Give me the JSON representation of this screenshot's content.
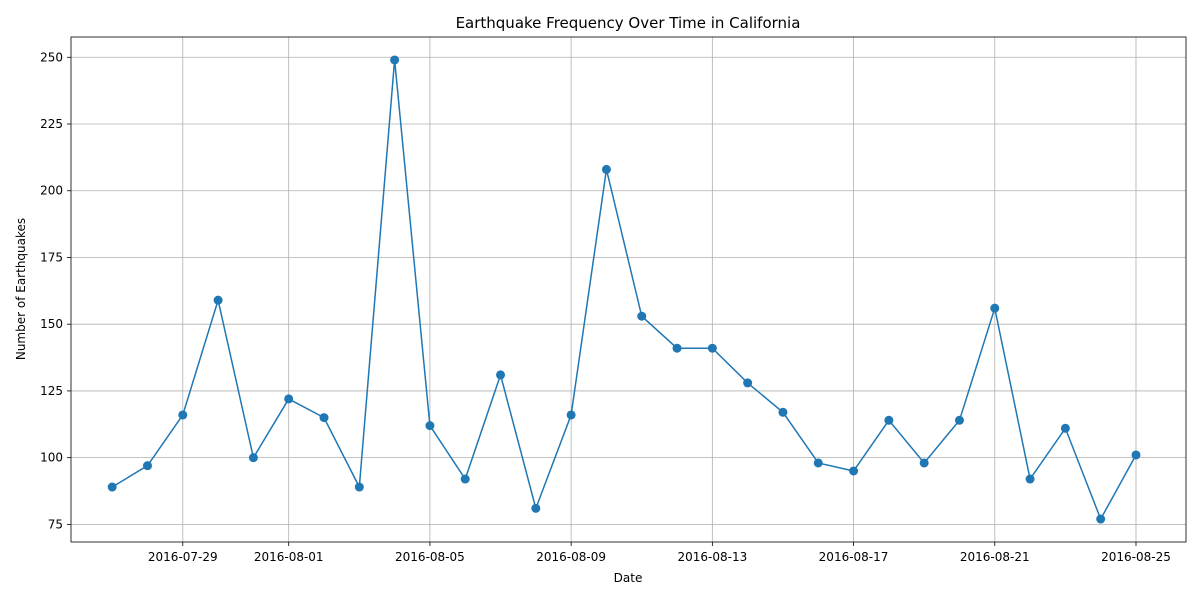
{
  "chart_data": {
    "type": "line",
    "title": "Earthquake Frequency Over Time in California",
    "xlabel": "Date",
    "ylabel": "Number of Earthquakes",
    "x": [
      "2016-07-27",
      "2016-07-28",
      "2016-07-29",
      "2016-07-30",
      "2016-07-31",
      "2016-08-01",
      "2016-08-02",
      "2016-08-03",
      "2016-08-04",
      "2016-08-05",
      "2016-08-06",
      "2016-08-07",
      "2016-08-08",
      "2016-08-09",
      "2016-08-10",
      "2016-08-11",
      "2016-08-12",
      "2016-08-13",
      "2016-08-14",
      "2016-08-15",
      "2016-08-16",
      "2016-08-17",
      "2016-08-18",
      "2016-08-19",
      "2016-08-20",
      "2016-08-21",
      "2016-08-22",
      "2016-08-23",
      "2016-08-24",
      "2016-08-25"
    ],
    "values": [
      89,
      97,
      116,
      159,
      100,
      122,
      115,
      89,
      249,
      112,
      92,
      131,
      81,
      116,
      208,
      153,
      141,
      141,
      128,
      117,
      98,
      95,
      114,
      98,
      114,
      156,
      92,
      111,
      77,
      101
    ],
    "x_ticks": [
      "2016-07-29",
      "2016-08-01",
      "2016-08-05",
      "2016-08-09",
      "2016-08-13",
      "2016-08-17",
      "2016-08-21",
      "2016-08-25"
    ],
    "y_ticks": [
      75,
      100,
      125,
      150,
      175,
      200,
      225,
      250
    ],
    "xlim": [
      "2016-07-25T20:00",
      "2016-08-26T10:00"
    ],
    "ylim": [
      68.4,
      257.6
    ],
    "grid": true,
    "marker": "circle",
    "color": "#1f77b4"
  }
}
